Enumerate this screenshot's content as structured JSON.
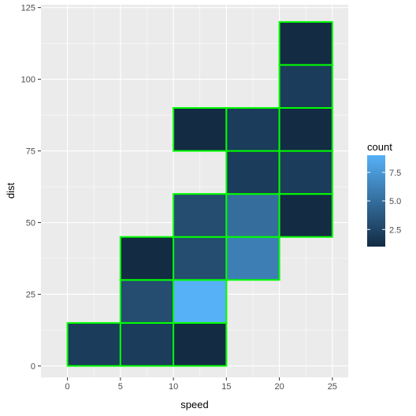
{
  "chart_data": {
    "type": "heatmap",
    "xlabel": "speed",
    "ylabel": "dist",
    "xlim": [
      -2.5,
      26.5
    ],
    "ylim": [
      -4,
      126
    ],
    "x_ticks": [
      0,
      5,
      10,
      15,
      20,
      25
    ],
    "x_tick_labels": [
      "0",
      "5",
      "10",
      "15",
      "20",
      "25"
    ],
    "y_ticks": [
      0,
      25,
      50,
      75,
      100,
      125
    ],
    "y_tick_labels": [
      "0",
      "25",
      "50",
      "75",
      "100",
      "125"
    ],
    "bin_width_x": 5,
    "bin_width_y": 15,
    "grid": true,
    "tile_border_color": "#00ff00",
    "panel_background": "#ebebeb",
    "cells": [
      {
        "x0": 0,
        "y0": 0,
        "count": 2
      },
      {
        "x0": 5,
        "y0": 0,
        "count": 2
      },
      {
        "x0": 10,
        "y0": 0,
        "count": 1
      },
      {
        "x0": 5,
        "y0": 15,
        "count": 3
      },
      {
        "x0": 10,
        "y0": 15,
        "count": 9
      },
      {
        "x0": 5,
        "y0": 30,
        "count": 1
      },
      {
        "x0": 10,
        "y0": 30,
        "count": 3
      },
      {
        "x0": 15,
        "y0": 30,
        "count": 6
      },
      {
        "x0": 10,
        "y0": 45,
        "count": 3
      },
      {
        "x0": 15,
        "y0": 45,
        "count": 5
      },
      {
        "x0": 20,
        "y0": 45,
        "count": 1
      },
      {
        "x0": 15,
        "y0": 60,
        "count": 2
      },
      {
        "x0": 20,
        "y0": 60,
        "count": 2
      },
      {
        "x0": 10,
        "y0": 75,
        "count": 1
      },
      {
        "x0": 15,
        "y0": 75,
        "count": 2
      },
      {
        "x0": 20,
        "y0": 75,
        "count": 1
      },
      {
        "x0": 20,
        "y0": 90,
        "count": 2
      },
      {
        "x0": 20,
        "y0": 105,
        "count": 1
      }
    ],
    "legend": {
      "title": "count",
      "placement": "right",
      "min": 1,
      "max": 9,
      "breaks": [
        2.5,
        5.0,
        7.5
      ],
      "break_labels": [
        "2.5",
        "5.0",
        "7.5"
      ],
      "low_color": "#132b43",
      "high_color": "#56b1f7"
    }
  }
}
